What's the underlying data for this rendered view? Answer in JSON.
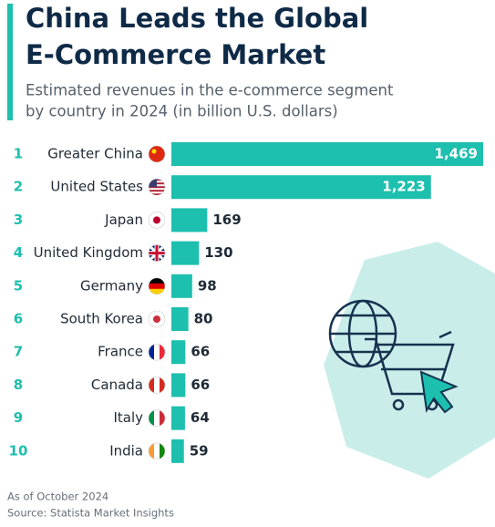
{
  "chart_data": {
    "type": "bar",
    "title_lines": [
      "China Leads the Global",
      "E-Commerce Market"
    ],
    "subtitle_lines": [
      "Estimated revenues in the e-commerce segment",
      "by country in 2024 (in billion U.S. dollars)"
    ],
    "ranks": [
      "1",
      "2",
      "3",
      "4",
      "5",
      "6",
      "7",
      "8",
      "9",
      "10"
    ],
    "categories": [
      "Greater China",
      "United States",
      "Japan",
      "United Kingdom",
      "Germany",
      "South Korea",
      "France",
      "Canada",
      "Italy",
      "India"
    ],
    "values": [
      1469,
      1223,
      169,
      130,
      98,
      80,
      66,
      66,
      64,
      59
    ],
    "value_labels": [
      "1,469",
      "1,223",
      "169",
      "130",
      "98",
      "80",
      "66",
      "66",
      "64",
      "59"
    ],
    "color": "#1dbfae",
    "notes": [
      "As of October 2024",
      "Source: Statista Market Insights"
    ]
  }
}
